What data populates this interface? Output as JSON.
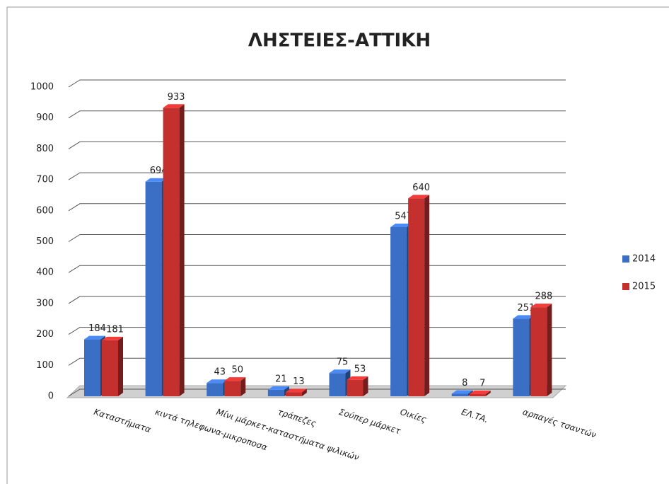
{
  "chart_data": {
    "type": "bar3d",
    "title": "ΛΗΣΤΕΙΕΣ-ΑΤΤΙΚΗ",
    "categories": [
      "Καταστήματα",
      "κιντά τηλεφωνα-μικροποσα",
      "Μίνι μάρκετ-καταστήματα ψιλικών",
      "τράπεζες",
      "Σούπερ μάρκετ",
      "Οικίες",
      "ΕΛ.ΤΑ.",
      "αρπαγές τσαντών"
    ],
    "series": [
      {
        "name": "2014",
        "color": "#3b6fc6",
        "values": [
          184,
          694,
          43,
          21,
          75,
          547,
          8,
          251
        ]
      },
      {
        "name": "2015",
        "color": "#c3302e",
        "values": [
          181,
          933,
          50,
          13,
          53,
          640,
          7,
          288
        ]
      }
    ],
    "ylim": [
      0,
      1000
    ],
    "yticks": [
      0,
      100,
      200,
      300,
      400,
      500,
      600,
      700,
      800,
      900,
      1000
    ],
    "grid": true,
    "legend": "right"
  }
}
